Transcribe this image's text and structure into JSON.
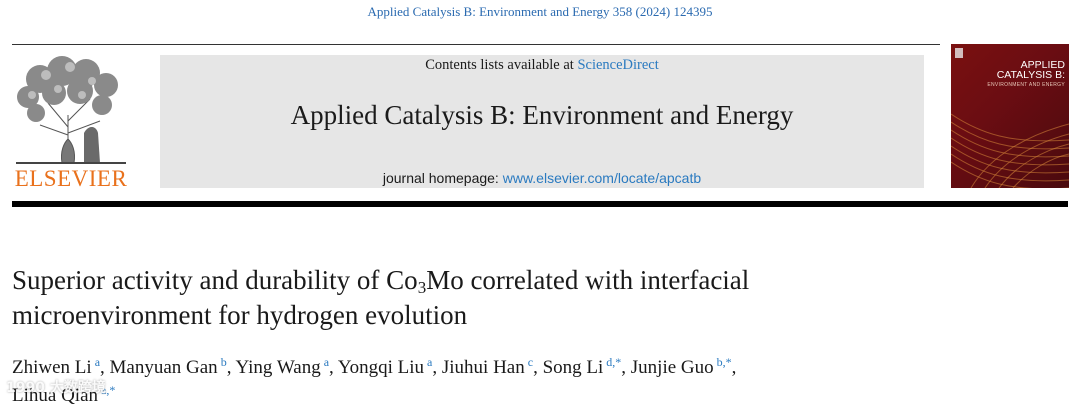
{
  "citation": "Applied Catalysis B: Environment and Energy 358 (2024) 124395",
  "publisher": {
    "name": "ELSEVIER",
    "contents_prefix": "Contents lists available at ",
    "contents_link": "ScienceDirect",
    "journal_title": "Applied Catalysis B: Environment and Energy",
    "homepage_prefix": "journal homepage: ",
    "homepage_url": "www.elsevier.com/locate/apcatb"
  },
  "cover": {
    "title_line1": "APPLIED",
    "title_line2": "CATALYSIS B:",
    "subtitle": "ENVIRONMENT AND ENERGY",
    "colors": [
      "#7a1010",
      "#4a0a0e",
      "#d98a3a"
    ]
  },
  "article": {
    "title_part1": "Superior activity and durability of Co",
    "title_sub": "3",
    "title_part2": "Mo correlated with interfacial",
    "title_line2": "microenvironment for hydrogen evolution"
  },
  "authors": [
    {
      "name": "Zhiwen Li",
      "aff": "a"
    },
    {
      "name": "Manyuan Gan",
      "aff": "b"
    },
    {
      "name": "Ying Wang",
      "aff": "a"
    },
    {
      "name": "Yongqi Liu",
      "aff": "a"
    },
    {
      "name": "Jiuhui Han",
      "aff": "c"
    },
    {
      "name": "Song Li",
      "aff": "d,*"
    },
    {
      "name": "Junjie Guo",
      "aff": "b,*"
    },
    {
      "name": "Lihua Qian",
      "aff": "a,*"
    }
  ],
  "watermark": "1990 大数跨境"
}
